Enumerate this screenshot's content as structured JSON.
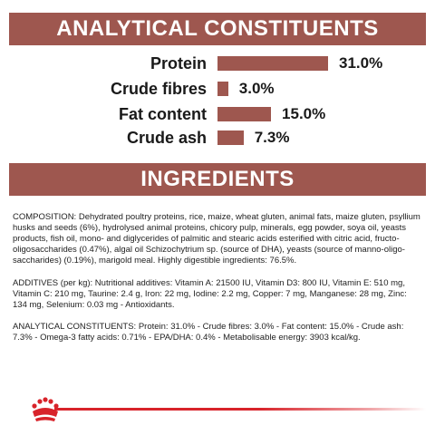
{
  "analytical": {
    "title": "ANALYTICAL CONSTITUENTS",
    "rows": [
      {
        "label": "Protein",
        "value": "31.0%",
        "percent": 31.0
      },
      {
        "label": "Crude fibres",
        "value": "3.0%",
        "percent": 3.0
      },
      {
        "label": "Fat content",
        "value": "15.0%",
        "percent": 15.0
      },
      {
        "label": "Crude ash",
        "value": "7.3%",
        "percent": 7.3
      }
    ]
  },
  "ingredients": {
    "title": "INGREDIENTS",
    "composition": "COMPOSITION: Dehydrated poultry proteins, rice, maize, wheat gluten, animal fats, maize gluten, psyllium husks and seeds (6%), hydrolysed animal proteins, chicory pulp, minerals, egg powder, soya oil, yeasts products, fish oil, mono- and diglycerides of palmitic and stearic acids esterified with citric acid, fructo-oligosaccharides (0.47%), algal oil Schizochytrium sp. (source of DHA), yeasts (source of manno-oligo-saccharides) (0.19%), marigold meal. Highly digestible ingredients: 76.5%.",
    "additives": "ADDITIVES (per kg): Nutritional additives: Vitamin A: 21500 IU, Vitamin D3: 800 IU, Vitamin E: 510 mg, Vitamin C: 210 mg, Taurine: 2.4 g, Iron: 22 mg, Iodine: 2.2 mg, Copper: 7 mg, Manganese: 28 mg, Zinc: 134 mg, Selenium: 0.03 mg - Antioxidants.",
    "analytical_text": "ANALYTICAL CONSTITUENTS: Protein: 31.0% - Crude fibres: 3.0% - Fat content: 15.0% - Crude ash: 7.3% - Omega-3 fatty acids: 0.71% - EPA/DHA: 0.4% - Metabolisable energy: 3903 kcal/kg."
  },
  "colors": {
    "banner": "#9e574f",
    "brand_red": "#d8232a"
  },
  "footer": {
    "logo_icon": "royal-canin-crown-icon"
  }
}
